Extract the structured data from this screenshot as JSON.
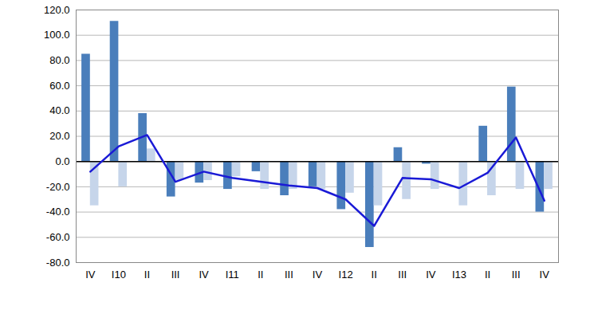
{
  "chart_data": {
    "type": "bar",
    "categories": [
      "IV",
      "I10",
      "II",
      "III",
      "IV",
      "I11",
      "II",
      "III",
      "IV",
      "I12",
      "II",
      "III",
      "IV",
      "I13",
      "II",
      "III",
      "IV"
    ],
    "series": [
      {
        "type": "bar",
        "color": "#4a7ebb",
        "values": [
          85,
          111,
          38,
          -28,
          -17,
          -22,
          -8,
          -27,
          -20,
          -38,
          -68,
          11,
          -2,
          0,
          28,
          59,
          -40
        ]
      },
      {
        "type": "bar",
        "color": "#c6d5ea",
        "values": [
          -35,
          -20,
          10,
          -15,
          -15,
          -12,
          -22,
          -22,
          -22,
          -25,
          -35,
          -30,
          -22,
          -35,
          -27,
          -22,
          -22
        ]
      },
      {
        "type": "line",
        "color": "#1a1ad6",
        "values": [
          -8,
          12,
          21,
          -16,
          -8,
          -13,
          -16,
          -19,
          -21,
          -30,
          -51,
          -13,
          -14,
          -21,
          -9,
          19,
          -31
        ]
      }
    ],
    "ylim": [
      -80,
      120
    ],
    "yticks": [
      {
        "value": -80,
        "label": "-80.0"
      },
      {
        "value": -60,
        "label": "-60.0"
      },
      {
        "value": -40,
        "label": "-40.0"
      },
      {
        "value": -20,
        "label": "-20.0"
      },
      {
        "value": 0,
        "label": "0.0"
      },
      {
        "value": 20,
        "label": "20.0"
      },
      {
        "value": 40,
        "label": "40.0"
      },
      {
        "value": 60,
        "label": "60.0"
      },
      {
        "value": 80,
        "label": "80.0"
      },
      {
        "value": 100,
        "label": "100.0"
      },
      {
        "value": 120,
        "label": "120.0"
      }
    ],
    "grid": true
  }
}
